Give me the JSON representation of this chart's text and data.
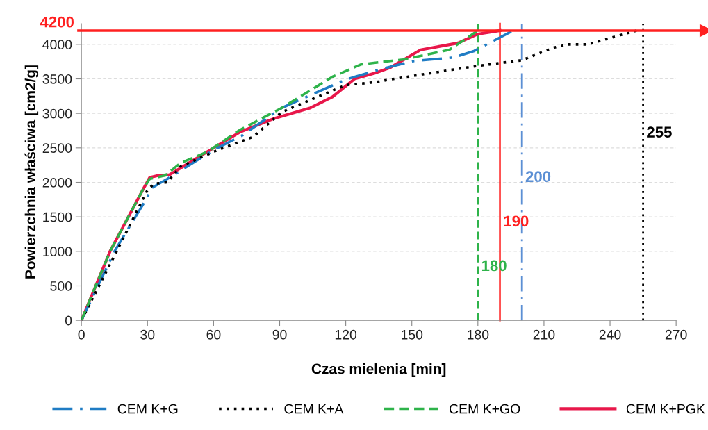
{
  "chart_data": {
    "type": "line",
    "xlabel": "Czas mielenia [min]",
    "ylabel": "Powierzchnia właściwa [cm2/g]",
    "xlim": [
      0,
      270
    ],
    "xticks": [
      0,
      30,
      60,
      90,
      120,
      150,
      180,
      210,
      240,
      270
    ],
    "ylim": [
      0,
      4300
    ],
    "yticks": [
      0,
      500,
      1000,
      1500,
      2000,
      2500,
      3000,
      3500,
      4000
    ],
    "grid": "y",
    "legend": "bottom",
    "marker": "none",
    "series": [
      {
        "name": "CEM K+G",
        "color": "#1f7cc4",
        "line_style": "dashdot",
        "x": [
          0,
          15,
          29.5,
          32,
          39,
          60,
          73,
          91,
          120,
          137,
          151,
          169,
          178,
          196
        ],
        "values": [
          0,
          1000,
          1760,
          1920,
          2050,
          2470,
          2680,
          3080,
          3490,
          3650,
          3760,
          3810,
          3900,
          4200
        ]
      },
      {
        "name": "CEM K+A",
        "color": "#000000",
        "line_style": "dotted",
        "x": [
          0,
          16,
          30,
          33,
          39,
          45,
          62,
          78,
          91,
          120,
          133,
          140,
          178,
          200,
          214,
          221,
          230,
          252
        ],
        "values": [
          0,
          1000,
          1890,
          1980,
          2000,
          2230,
          2470,
          2660,
          3020,
          3410,
          3450,
          3490,
          3680,
          3770,
          3950,
          4000,
          4000,
          4200
        ]
      },
      {
        "name": "CEM K+GO",
        "color": "#2eb34a",
        "line_style": "dashed",
        "x": [
          0,
          13,
          28,
          31,
          38,
          45,
          57,
          72,
          91,
          114,
          127,
          146,
          167,
          180
        ],
        "values": [
          0,
          1000,
          1900,
          2050,
          2100,
          2280,
          2440,
          2760,
          3080,
          3530,
          3710,
          3780,
          3920,
          4200
        ]
      },
      {
        "name": "CEM K+PGK",
        "color": "#e8174a",
        "line_style": "solid",
        "x": [
          0,
          13,
          28,
          31,
          35,
          40,
          57,
          72,
          87,
          104,
          114,
          124,
          133,
          140,
          154,
          171,
          180,
          190
        ],
        "values": [
          0,
          1000,
          1900,
          2070,
          2100,
          2110,
          2440,
          2730,
          2920,
          3080,
          3240,
          3500,
          3580,
          3660,
          3920,
          4020,
          4150,
          4200
        ]
      }
    ],
    "ref_lines": [
      {
        "axis": "x",
        "value": 180,
        "label": "180",
        "color": "#2eb34a",
        "line_style": "dashed"
      },
      {
        "axis": "x",
        "value": 190,
        "label": "190",
        "color": "#ff2020",
        "line_style": "solid"
      },
      {
        "axis": "x",
        "value": 200,
        "label": "200",
        "color": "#5b8fd4",
        "line_style": "dashdot"
      },
      {
        "axis": "x",
        "value": 255,
        "label": "255",
        "color": "#000000",
        "line_style": "dotted"
      },
      {
        "axis": "y",
        "value": 4200,
        "label": "4200",
        "color": "#ff2020",
        "line_style": "solid"
      }
    ]
  }
}
